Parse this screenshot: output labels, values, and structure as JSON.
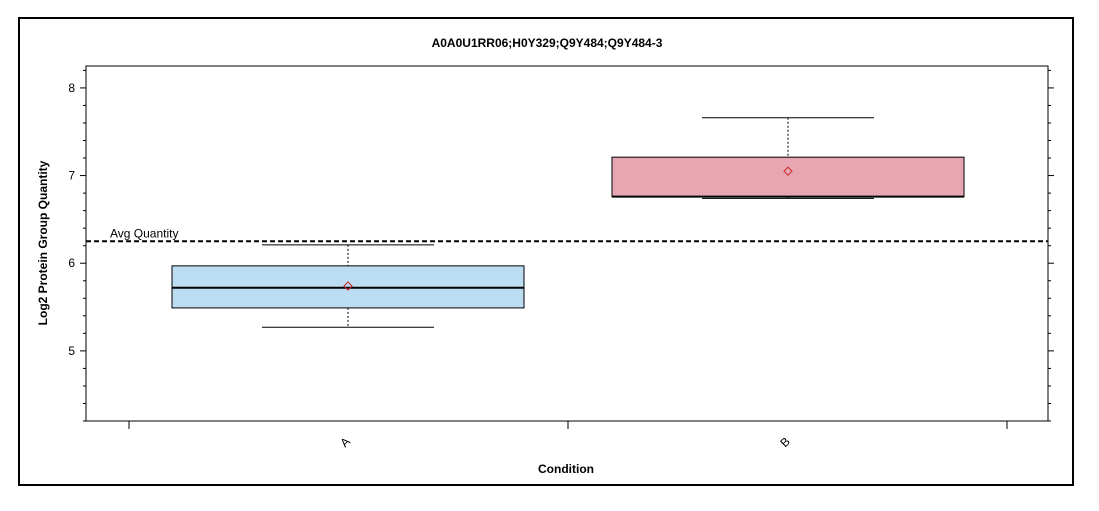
{
  "chart_data": {
    "type": "box",
    "title": "A0A0U1RR06;H0Y329;Q9Y484;Q9Y484-3",
    "xlabel": "Condition",
    "ylabel": "Log2 Protein Group Quantity",
    "categories": [
      "A",
      "B"
    ],
    "ylim": [
      4.2,
      8.25
    ],
    "y_ticks": [
      5,
      6,
      7,
      8
    ],
    "boxes": [
      {
        "category": "A",
        "whisker_low": 5.27,
        "q1": 5.49,
        "median": 5.72,
        "q3": 5.97,
        "whisker_high": 6.21,
        "mean": 5.74,
        "color": "#bcdcf2"
      },
      {
        "category": "B",
        "whisker_low": 6.74,
        "q1": 6.76,
        "median": 6.76,
        "q3": 7.21,
        "whisker_high": 7.66,
        "mean": 7.05,
        "color": "#e7a7b2"
      }
    ],
    "reference_line": {
      "label": "Avg Quantity",
      "value": 6.25
    },
    "mean_marker_color": "#cc2222"
  }
}
